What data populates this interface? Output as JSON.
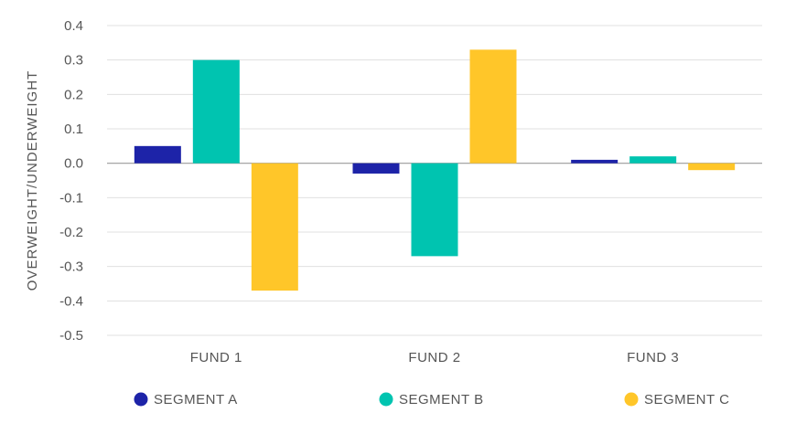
{
  "chart_data": {
    "type": "bar",
    "title": "",
    "xlabel": "",
    "ylabel": "OVERWEIGHT/UNDERWEIGHT",
    "ylim": [
      -0.5,
      0.4
    ],
    "yticks": [
      0.4,
      0.3,
      0.2,
      0.1,
      0.0,
      -0.1,
      -0.2,
      -0.3,
      -0.4,
      -0.5
    ],
    "ytick_labels": [
      "0.4",
      "0.3",
      "0.2",
      "0.1",
      "0.0",
      "-0.1",
      "-0.2",
      "-0.3",
      "-0.4",
      "-0.5"
    ],
    "grid": true,
    "legend_position": "bottom",
    "categories": [
      "FUND 1",
      "FUND 2",
      "FUND 3"
    ],
    "series": [
      {
        "name": "SEGMENT A",
        "color": "#1d23a8",
        "values": [
          0.05,
          -0.03,
          0.01
        ]
      },
      {
        "name": "SEGMENT B",
        "color": "#00c4b0",
        "values": [
          0.3,
          -0.27,
          0.02
        ]
      },
      {
        "name": "SEGMENT C",
        "color": "#ffc629",
        "values": [
          -0.37,
          0.33,
          -0.02
        ]
      }
    ]
  }
}
